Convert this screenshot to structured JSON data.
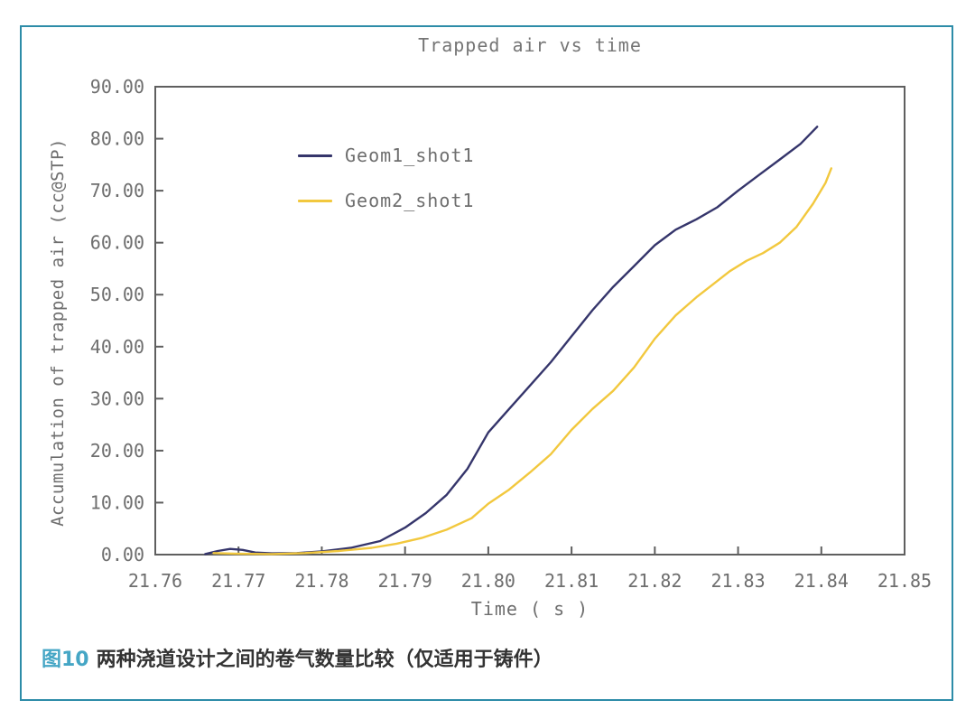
{
  "figure": {
    "caption_label": "图10",
    "caption_text": "两种浇道设计之间的卷气数量比较（仅适用于铸件）",
    "border_color": "#2d8ca8",
    "caption_label_color": "#45a6c5"
  },
  "chart_data": {
    "type": "line",
    "title": "Trapped air vs time",
    "xlabel": "Time ( s )",
    "ylabel": "Accumulation of trapped air (cc@STP)",
    "xlim": [
      21.76,
      21.85
    ],
    "ylim": [
      0,
      90
    ],
    "grid": false,
    "legend_position": "upper-left-inside",
    "axis_color": "#5f5f5f",
    "x_ticks": [
      {
        "value": 21.76,
        "label": "21.76"
      },
      {
        "value": 21.77,
        "label": "21.77"
      },
      {
        "value": 21.78,
        "label": "21.78"
      },
      {
        "value": 21.79,
        "label": "21.79"
      },
      {
        "value": 21.8,
        "label": "21.80"
      },
      {
        "value": 21.81,
        "label": "21.81"
      },
      {
        "value": 21.82,
        "label": "21.82"
      },
      {
        "value": 21.83,
        "label": "21.83"
      },
      {
        "value": 21.84,
        "label": "21.84"
      },
      {
        "value": 21.85,
        "label": "21.85"
      }
    ],
    "y_ticks": [
      {
        "value": 0,
        "label": "0.00"
      },
      {
        "value": 10,
        "label": "10.00"
      },
      {
        "value": 20,
        "label": "20.00"
      },
      {
        "value": 30,
        "label": "30.00"
      },
      {
        "value": 40,
        "label": "40.00"
      },
      {
        "value": 50,
        "label": "50.00"
      },
      {
        "value": 60,
        "label": "60.00"
      },
      {
        "value": 70,
        "label": "70.00"
      },
      {
        "value": 80,
        "label": "80.00"
      },
      {
        "value": 90,
        "label": "90.00"
      }
    ],
    "series": [
      {
        "name": "Geom1_shot1",
        "color": "#35356b",
        "points": [
          [
            21.766,
            0.1
          ],
          [
            21.7675,
            0.7
          ],
          [
            21.769,
            1.1
          ],
          [
            21.7705,
            0.9
          ],
          [
            21.772,
            0.4
          ],
          [
            21.774,
            0.25
          ],
          [
            21.777,
            0.3
          ],
          [
            21.78,
            0.6
          ],
          [
            21.7835,
            1.3
          ],
          [
            21.787,
            2.6
          ],
          [
            21.79,
            5.2
          ],
          [
            21.7925,
            8.0
          ],
          [
            21.795,
            11.5
          ],
          [
            21.7975,
            16.5
          ],
          [
            21.8,
            23.5
          ],
          [
            21.8025,
            28.0
          ],
          [
            21.805,
            32.5
          ],
          [
            21.8075,
            37.0
          ],
          [
            21.81,
            42.0
          ],
          [
            21.8125,
            47.0
          ],
          [
            21.815,
            51.5
          ],
          [
            21.8175,
            55.5
          ],
          [
            21.82,
            59.5
          ],
          [
            21.8225,
            62.5
          ],
          [
            21.825,
            64.5
          ],
          [
            21.8275,
            66.8
          ],
          [
            21.83,
            70.0
          ],
          [
            21.8325,
            73.0
          ],
          [
            21.835,
            76.0
          ],
          [
            21.8375,
            79.0
          ],
          [
            21.8395,
            82.3
          ]
        ]
      },
      {
        "name": "Geom2_shot1",
        "color": "#f2c83e",
        "points": [
          [
            21.767,
            0.3
          ],
          [
            21.77,
            0.15
          ],
          [
            21.774,
            0.1
          ],
          [
            21.778,
            0.3
          ],
          [
            21.782,
            0.7
          ],
          [
            21.786,
            1.3
          ],
          [
            21.789,
            2.1
          ],
          [
            21.792,
            3.2
          ],
          [
            21.795,
            4.8
          ],
          [
            21.798,
            7.0
          ],
          [
            21.8,
            9.8
          ],
          [
            21.8025,
            12.5
          ],
          [
            21.805,
            15.8
          ],
          [
            21.8075,
            19.3
          ],
          [
            21.81,
            24.0
          ],
          [
            21.8125,
            28.0
          ],
          [
            21.815,
            31.5
          ],
          [
            21.8175,
            36.0
          ],
          [
            21.82,
            41.5
          ],
          [
            21.8225,
            46.0
          ],
          [
            21.825,
            49.5
          ],
          [
            21.827,
            52.0
          ],
          [
            21.829,
            54.5
          ],
          [
            21.831,
            56.5
          ],
          [
            21.833,
            58.0
          ],
          [
            21.835,
            60.0
          ],
          [
            21.837,
            63.0
          ],
          [
            21.839,
            67.5
          ],
          [
            21.8405,
            71.5
          ],
          [
            21.8412,
            74.3
          ]
        ]
      }
    ]
  }
}
